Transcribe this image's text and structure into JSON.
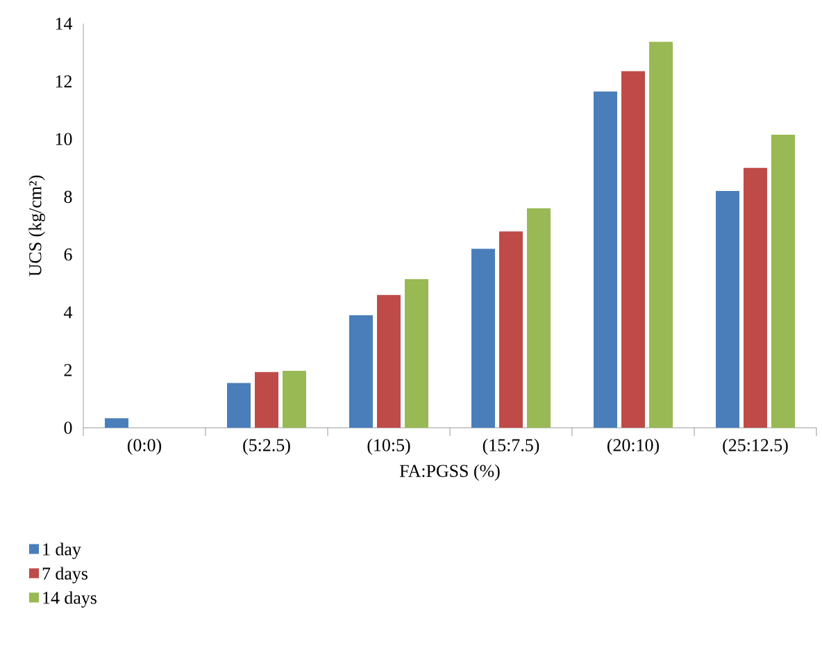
{
  "chart_data": {
    "type": "bar",
    "xlabel": "FA:PGSS (%)",
    "ylabel": "UCS (kg/cm²)",
    "categories": [
      "(0:0)",
      "(5:2.5)",
      "(10:5)",
      "(15:7.5)",
      "(20:10)",
      "(25:12.5)"
    ],
    "series": [
      {
        "name": "1 day",
        "color": "#4a7ebb",
        "values": [
          0.33,
          1.55,
          3.9,
          6.2,
          11.65,
          8.2
        ]
      },
      {
        "name": "7 days",
        "color": "#be4b48",
        "values": [
          0,
          1.93,
          4.6,
          6.8,
          12.35,
          9.0
        ]
      },
      {
        "name": "14 days",
        "color": "#98b954",
        "values": [
          0,
          1.97,
          5.15,
          7.6,
          13.37,
          10.15
        ]
      }
    ],
    "ylim": [
      0,
      14
    ],
    "yticks": [
      0,
      2,
      4,
      6,
      8,
      10,
      12,
      14
    ],
    "grid": false,
    "legend": "bottom left"
  }
}
